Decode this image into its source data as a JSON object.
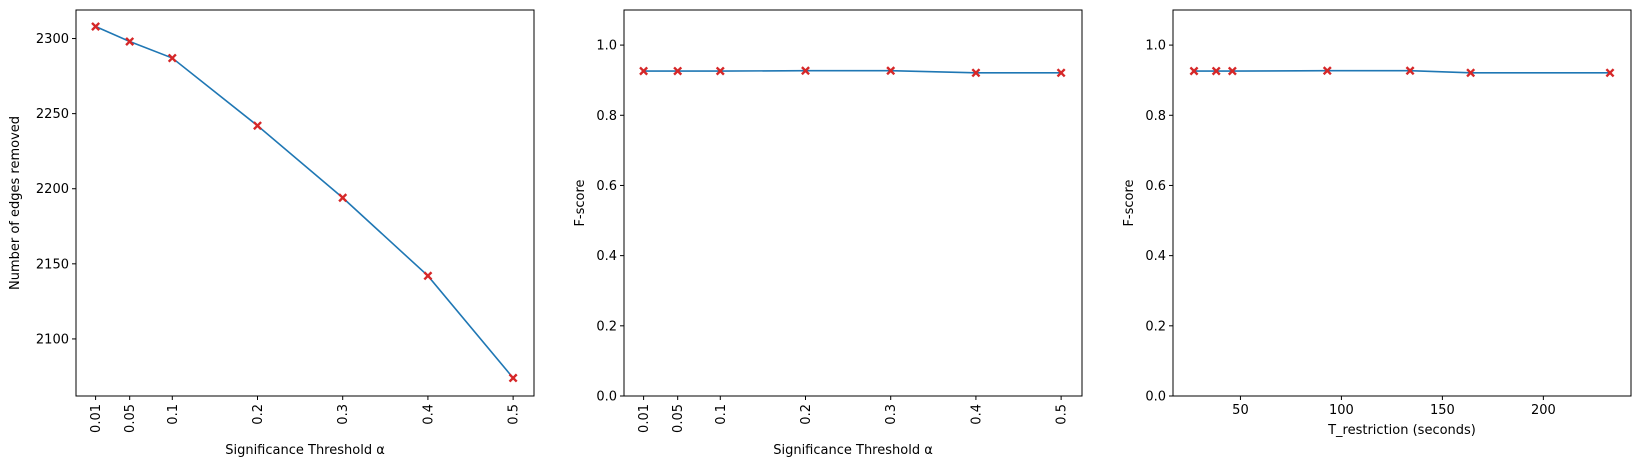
{
  "chart_data": [
    {
      "type": "line",
      "title": "",
      "xlabel": "Significance Threshold α",
      "ylabel": "Number of edges removed",
      "x": [
        0.01,
        0.05,
        0.1,
        0.2,
        0.3,
        0.4,
        0.5
      ],
      "x_tick_labels": [
        "0.01",
        "0.05",
        "0.1",
        "0.2",
        "0.3",
        "0.4",
        "0.5"
      ],
      "x_tick_rotation": "vertical",
      "xlim": [
        -0.013,
        0.5245
      ],
      "y_ticks": [
        2100,
        2150,
        2200,
        2250,
        2300
      ],
      "ylim": [
        2062,
        2319
      ],
      "series": [
        {
          "values": [
            2308,
            2298,
            2287,
            2242,
            2194,
            2142,
            2074
          ]
        }
      ],
      "line_color": "#1f77b4",
      "marker_color": "#d62728",
      "grid": false
    },
    {
      "type": "line",
      "title": "",
      "xlabel": "Significance Threshold α",
      "ylabel": "F-score",
      "x": [
        0.01,
        0.05,
        0.1,
        0.2,
        0.3,
        0.4,
        0.5
      ],
      "x_tick_labels": [
        "0.01",
        "0.05",
        "0.1",
        "0.2",
        "0.3",
        "0.4",
        "0.5"
      ],
      "x_tick_rotation": "vertical",
      "xlim": [
        -0.013,
        0.5245
      ],
      "y_ticks": [
        0.0,
        0.2,
        0.4,
        0.6,
        0.8,
        1.0
      ],
      "y_tick_labels": [
        "0.0",
        "0.2",
        "0.4",
        "0.6",
        "0.8",
        "1.0"
      ],
      "ylim": [
        0,
        1.1
      ],
      "series": [
        {
          "values": [
            0.926,
            0.926,
            0.926,
            0.927,
            0.927,
            0.921,
            0.921
          ]
        }
      ],
      "line_color": "#1f77b4",
      "marker_color": "#d62728",
      "grid": false
    },
    {
      "type": "line",
      "title": "",
      "xlabel": "T_restriction (seconds)",
      "ylabel": "F-score",
      "x": [
        27,
        38,
        46,
        93,
        134,
        164,
        233
      ],
      "x_ticks": [
        50,
        100,
        150,
        200
      ],
      "xlim": [
        16.6,
        243.4
      ],
      "y_ticks": [
        0.0,
        0.2,
        0.4,
        0.6,
        0.8,
        1.0
      ],
      "y_tick_labels": [
        "0.0",
        "0.2",
        "0.4",
        "0.6",
        "0.8",
        "1.0"
      ],
      "ylim": [
        0,
        1.1
      ],
      "series": [
        {
          "values": [
            0.926,
            0.926,
            0.926,
            0.927,
            0.927,
            0.921,
            0.921
          ]
        }
      ],
      "line_color": "#1f77b4",
      "marker_color": "#d62728",
      "grid": false
    }
  ]
}
